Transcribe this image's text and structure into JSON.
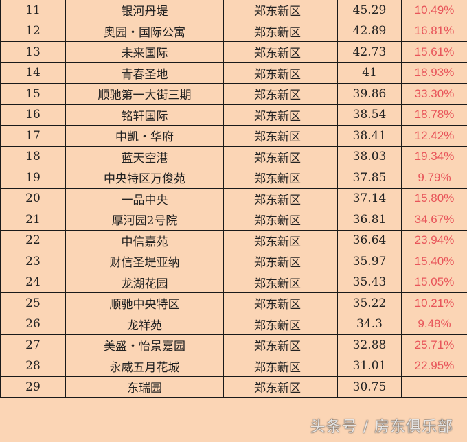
{
  "rows": [
    {
      "rank": "11",
      "name": "银河丹堤",
      "district": "郑东新区",
      "value": "45.29",
      "pct": "10.49%"
    },
    {
      "rank": "12",
      "name": "奥园・国际公寓",
      "district": "郑东新区",
      "value": "42.89",
      "pct": "16.81%"
    },
    {
      "rank": "13",
      "name": "未来国际",
      "district": "郑东新区",
      "value": "42.73",
      "pct": "15.61%"
    },
    {
      "rank": "14",
      "name": "青春圣地",
      "district": "郑东新区",
      "value": "41",
      "pct": "18.93%"
    },
    {
      "rank": "15",
      "name": "顺驰第一大街三期",
      "district": "郑东新区",
      "value": "39.86",
      "pct": "33.30%"
    },
    {
      "rank": "16",
      "name": "铭轩国际",
      "district": "郑东新区",
      "value": "38.54",
      "pct": "18.78%"
    },
    {
      "rank": "17",
      "name": "中凯・华府",
      "district": "郑东新区",
      "value": "38.41",
      "pct": "12.42%"
    },
    {
      "rank": "18",
      "name": "蓝天空港",
      "district": "郑东新区",
      "value": "38.03",
      "pct": "19.34%"
    },
    {
      "rank": "19",
      "name": "中央特区万俊苑",
      "district": "郑东新区",
      "value": "37.85",
      "pct": "9.79%"
    },
    {
      "rank": "20",
      "name": "一品中央",
      "district": "郑东新区",
      "value": "37.14",
      "pct": "15.80%"
    },
    {
      "rank": "21",
      "name": "厚河园2号院",
      "district": "郑东新区",
      "value": "36.81",
      "pct": "34.67%"
    },
    {
      "rank": "22",
      "name": "中信嘉苑",
      "district": "郑东新区",
      "value": "36.64",
      "pct": "23.94%"
    },
    {
      "rank": "23",
      "name": "财信圣堤亚纳",
      "district": "郑东新区",
      "value": "35.97",
      "pct": "15.40%"
    },
    {
      "rank": "24",
      "name": "龙湖花园",
      "district": "郑东新区",
      "value": "35.43",
      "pct": "15.05%"
    },
    {
      "rank": "25",
      "name": "顺驰中央特区",
      "district": "郑东新区",
      "value": "35.22",
      "pct": "10.21%"
    },
    {
      "rank": "26",
      "name": "龙祥苑",
      "district": "郑东新区",
      "value": "34.3",
      "pct": "9.48%"
    },
    {
      "rank": "27",
      "name": "美盛・怡景嘉园",
      "district": "郑东新区",
      "value": "32.88",
      "pct": "25.71%"
    },
    {
      "rank": "28",
      "name": "永威五月花城",
      "district": "郑东新区",
      "value": "31.01",
      "pct": "22.95%"
    },
    {
      "rank": "29",
      "name": "东瑞园",
      "district": "郑东新区",
      "value": "30.75",
      "pct": ""
    }
  ],
  "watermark": "头条号 / 房东俱乐部",
  "colors": {
    "background": "#FBD5B5",
    "percent_text": "#E8555A",
    "border": "#1a1a1a"
  }
}
